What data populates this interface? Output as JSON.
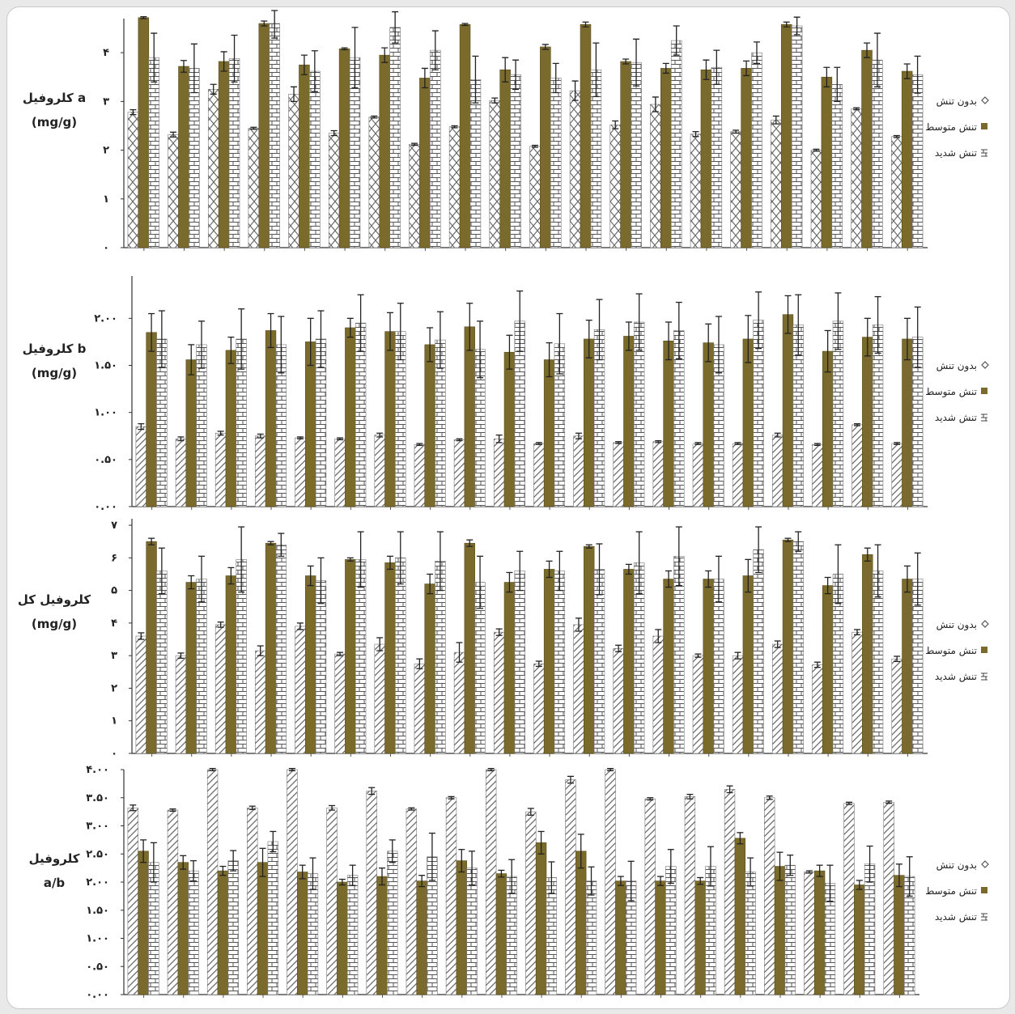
{
  "chart_data": [
    {
      "type": "bar",
      "ylabel_lines": [
        "کلروفیل a",
        "(mg/g)"
      ],
      "yticks": [
        "۴",
        "۳",
        "۲",
        "۱",
        "۰"
      ],
      "tick_values": [
        4,
        3,
        2,
        1,
        0
      ],
      "ylim": [
        0,
        4.7
      ],
      "legend": [
        "بدون تنش",
        "تنش متوسط",
        "تنش شدید"
      ],
      "series": [
        {
          "values": [
            2.78,
            2.32,
            3.25,
            2.45,
            3.15,
            2.35,
            2.68,
            2.12,
            2.48,
            3.02,
            2.08,
            3.22,
            2.52,
            2.94,
            2.33,
            2.38,
            2.62,
            2.0,
            2.85,
            2.28
          ],
          "errors": [
            0.05,
            0.05,
            0.1,
            0.02,
            0.15,
            0.05,
            0.02,
            0.02,
            0.02,
            0.05,
            0.02,
            0.2,
            0.08,
            0.15,
            0.05,
            0.03,
            0.08,
            0.02,
            0.02,
            0.02
          ]
        },
        {
          "values": [
            4.72,
            3.72,
            3.82,
            4.6,
            3.75,
            4.08,
            3.95,
            3.48,
            4.58,
            3.65,
            4.12,
            4.58,
            3.82,
            3.68,
            3.65,
            3.68,
            4.58,
            3.5,
            4.05,
            3.62
          ],
          "errors": [
            0.02,
            0.12,
            0.2,
            0.05,
            0.2,
            0.02,
            0.15,
            0.2,
            0.02,
            0.25,
            0.05,
            0.05,
            0.05,
            0.1,
            0.2,
            0.15,
            0.05,
            0.2,
            0.15,
            0.15
          ]
        },
        {
          "values": [
            3.9,
            3.68,
            3.88,
            4.6,
            3.62,
            3.9,
            4.52,
            4.05,
            3.45,
            3.55,
            3.48,
            3.65,
            3.8,
            4.25,
            3.7,
            4.0,
            4.55,
            3.35,
            3.85,
            3.55
          ],
          "errors": [
            0.5,
            0.5,
            0.48,
            0.3,
            0.42,
            0.62,
            0.32,
            0.4,
            0.48,
            0.3,
            0.3,
            0.55,
            0.48,
            0.3,
            0.35,
            0.22,
            0.18,
            0.35,
            0.55,
            0.38
          ]
        }
      ]
    },
    {
      "type": "bar",
      "ylabel_lines": [
        "کلروفیل b",
        "(mg/g)"
      ],
      "yticks": [
        "۲.۰۰",
        "۱.۵۰",
        "۱.۰۰",
        "۰.۵۰",
        "۰.۰۰"
      ],
      "tick_values": [
        2.0,
        1.5,
        1.0,
        0.5,
        0.0
      ],
      "ylim": [
        0,
        2.45
      ],
      "legend": [
        "بدون تنش",
        "تنش متوسط",
        "تنش شدید"
      ],
      "series": [
        {
          "values": [
            0.85,
            0.72,
            0.78,
            0.75,
            0.73,
            0.72,
            0.76,
            0.66,
            0.71,
            0.72,
            0.67,
            0.75,
            0.68,
            0.69,
            0.67,
            0.67,
            0.76,
            0.66,
            0.87,
            0.67
          ],
          "errors": [
            0.03,
            0.02,
            0.02,
            0.02,
            0.01,
            0.01,
            0.02,
            0.01,
            0.01,
            0.04,
            0.01,
            0.03,
            0.01,
            0.01,
            0.01,
            0.01,
            0.02,
            0.01,
            0.01,
            0.01
          ],
          "fill": "diag"
        },
        {
          "values": [
            1.85,
            1.56,
            1.66,
            1.87,
            1.75,
            1.9,
            1.86,
            1.72,
            1.91,
            1.64,
            1.56,
            1.78,
            1.81,
            1.76,
            1.74,
            1.78,
            2.04,
            1.65,
            1.8,
            1.78
          ],
          "errors": [
            0.2,
            0.16,
            0.14,
            0.18,
            0.25,
            0.1,
            0.2,
            0.18,
            0.25,
            0.18,
            0.18,
            0.2,
            0.15,
            0.2,
            0.2,
            0.25,
            0.2,
            0.22,
            0.2,
            0.22
          ]
        },
        {
          "values": [
            1.78,
            1.72,
            1.78,
            1.72,
            1.78,
            1.95,
            1.86,
            1.77,
            1.67,
            1.97,
            1.73,
            1.88,
            1.96,
            1.87,
            1.72,
            1.98,
            1.93,
            1.97,
            1.93,
            1.8
          ],
          "errors": [
            0.3,
            0.25,
            0.32,
            0.3,
            0.3,
            0.3,
            0.3,
            0.3,
            0.3,
            0.32,
            0.32,
            0.32,
            0.3,
            0.3,
            0.3,
            0.3,
            0.32,
            0.3,
            0.3,
            0.32
          ]
        }
      ]
    },
    {
      "type": "bar",
      "ylabel_lines": [
        "کلروفیل کل",
        "(mg/g)"
      ],
      "yticks": [
        "۷",
        "۶",
        "۵",
        "۴",
        "۳",
        "۲",
        "۱",
        "۰"
      ],
      "tick_values": [
        7,
        6,
        5,
        4,
        3,
        2,
        1,
        0
      ],
      "ylim": [
        0,
        7.2
      ],
      "legend": [
        "بدون تنش",
        "تنش متوسط",
        "تنش شدید"
      ],
      "series": [
        {
          "values": [
            3.6,
            3.0,
            3.95,
            3.15,
            3.9,
            3.05,
            3.35,
            2.75,
            3.1,
            3.72,
            2.75,
            3.95,
            3.22,
            3.6,
            3.0,
            3.0,
            3.35,
            2.72,
            3.72,
            2.9
          ],
          "errors": [
            0.1,
            0.08,
            0.08,
            0.15,
            0.1,
            0.05,
            0.2,
            0.15,
            0.3,
            0.1,
            0.08,
            0.2,
            0.1,
            0.2,
            0.05,
            0.1,
            0.1,
            0.08,
            0.08,
            0.08
          ],
          "fill": "diag"
        },
        {
          "values": [
            6.5,
            5.25,
            5.45,
            6.45,
            5.45,
            5.95,
            5.85,
            5.2,
            6.45,
            5.25,
            5.65,
            6.35,
            5.65,
            5.35,
            5.35,
            5.45,
            6.55,
            5.15,
            6.1,
            5.35
          ],
          "errors": [
            0.1,
            0.2,
            0.25,
            0.05,
            0.3,
            0.05,
            0.2,
            0.3,
            0.1,
            0.3,
            0.25,
            0.05,
            0.15,
            0.25,
            0.25,
            0.5,
            0.05,
            0.25,
            0.2,
            0.4
          ]
        },
        {
          "values": [
            5.6,
            5.35,
            5.95,
            6.4,
            5.3,
            5.95,
            6.0,
            5.9,
            5.25,
            5.6,
            5.6,
            5.65,
            5.85,
            6.05,
            5.35,
            6.25,
            6.5,
            5.5,
            5.6,
            5.35
          ],
          "errors": [
            0.7,
            0.7,
            1.0,
            0.35,
            0.7,
            0.85,
            0.8,
            0.9,
            0.8,
            0.6,
            0.6,
            0.78,
            0.95,
            0.9,
            0.7,
            0.7,
            0.3,
            0.9,
            0.8,
            0.8
          ]
        }
      ]
    },
    {
      "type": "bar",
      "ylabel_lines": [
        "کلروفیل",
        "a/b"
      ],
      "yticks": [
        "۴.۰۰",
        "۳.۵۰",
        "۳.۰۰",
        "۲.۵۰",
        "۲.۰۰",
        "۱.۵۰",
        "۱.۰۰",
        "۰.۵۰",
        "۰.۰۰"
      ],
      "tick_values": [
        4.0,
        3.5,
        3.0,
        2.5,
        2.0,
        1.5,
        1.0,
        0.5,
        0.0
      ],
      "ylim": [
        0,
        4.0
      ],
      "legend": [
        "بدون تنش",
        "تنش متوسط",
        "تنش شدید"
      ],
      "series": [
        {
          "values": [
            3.32,
            3.28,
            4.0,
            3.32,
            4.0,
            3.32,
            3.62,
            3.3,
            3.5,
            4.0,
            3.25,
            3.82,
            4.0,
            3.48,
            3.52,
            3.65,
            3.5,
            2.18,
            3.4,
            3.42
          ],
          "errors": [
            0.05,
            0.02,
            0.02,
            0.03,
            0.02,
            0.04,
            0.06,
            0.02,
            0.02,
            0.02,
            0.06,
            0.06,
            0.02,
            0.02,
            0.04,
            0.06,
            0.03,
            0.02,
            0.02,
            0.02
          ],
          "fill": "diag"
        },
        {
          "values": [
            2.55,
            2.35,
            2.2,
            2.35,
            2.18,
            2.0,
            2.1,
            2.02,
            2.38,
            2.15,
            2.7,
            2.55,
            2.02,
            2.02,
            2.02,
            2.78,
            2.28,
            2.2,
            1.95,
            2.12
          ],
          "errors": [
            0.2,
            0.12,
            0.08,
            0.25,
            0.12,
            0.05,
            0.15,
            0.1,
            0.2,
            0.06,
            0.2,
            0.3,
            0.08,
            0.08,
            0.06,
            0.1,
            0.25,
            0.1,
            0.08,
            0.2
          ]
        },
        {
          "values": [
            2.35,
            2.2,
            2.38,
            2.72,
            2.15,
            2.12,
            2.55,
            2.45,
            2.25,
            2.1,
            2.08,
            2.02,
            2.02,
            2.28,
            2.28,
            2.18,
            2.3,
            1.98,
            2.32,
            2.1
          ],
          "errors": [
            0.35,
            0.18,
            0.18,
            0.18,
            0.28,
            0.18,
            0.2,
            0.42,
            0.3,
            0.3,
            0.28,
            0.25,
            0.35,
            0.3,
            0.35,
            0.25,
            0.18,
            0.32,
            0.32,
            0.35
          ]
        }
      ]
    }
  ],
  "colors": {
    "series1_fg": "#6a6a6a",
    "series2": "#7a6a2c",
    "series2_edge": "#5a4e1c",
    "series3_fg": "#555555",
    "bar_bg": "#ffffff"
  },
  "legend_icons": [
    "diamond-hatch-icon",
    "olive-square-icon",
    "brick-icon"
  ]
}
